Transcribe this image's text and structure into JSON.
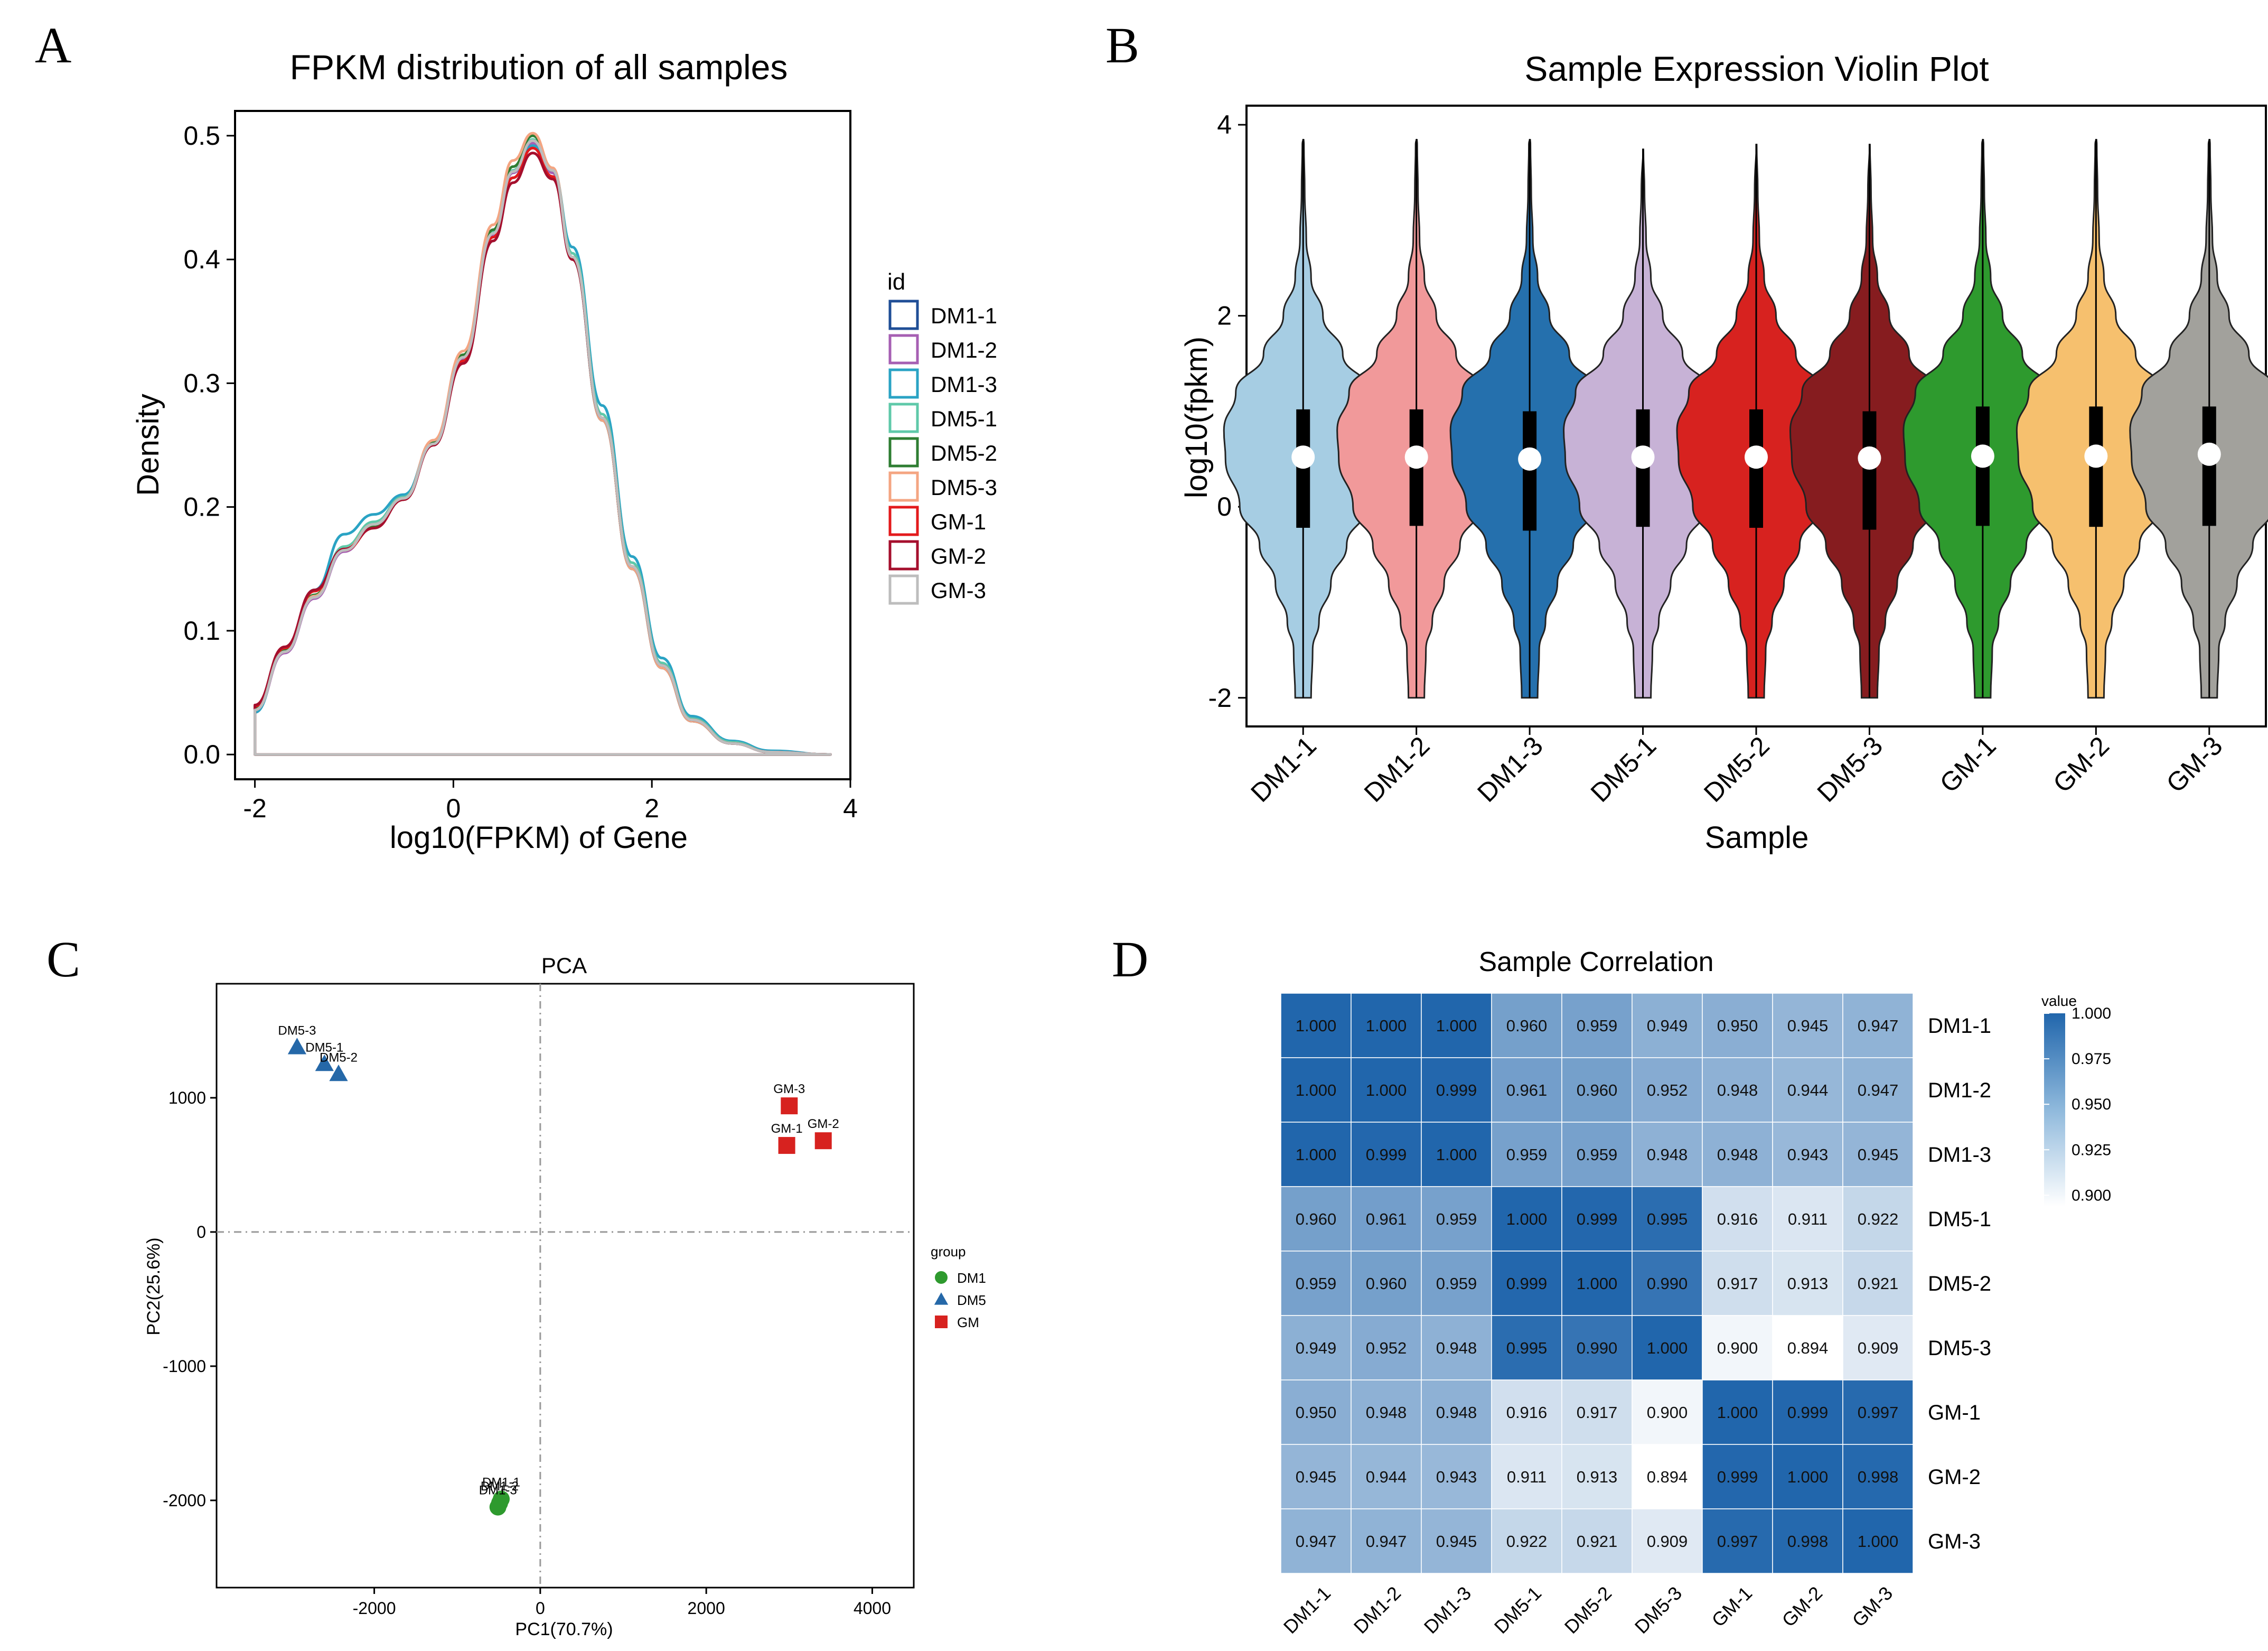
{
  "panels": {
    "A": "A",
    "B": "B",
    "C": "C",
    "D": "D"
  },
  "colors": {
    "DM1-1": "#1f4e96",
    "DM1-2": "#a65fb3",
    "DM1-3": "#2aa3c4",
    "DM5-1": "#5fc9a9",
    "DM5-2": "#2e7d32",
    "DM5-3": "#f4a582",
    "GM-1": "#e31a1c",
    "GM-2": "#a50f2d",
    "GM-3": "#bdbdbd",
    "violin": [
      "#a6cde3",
      "#f1999a",
      "#2570ad",
      "#c7b2d6",
      "#d7221f",
      "#861c1f",
      "#2e9a2e",
      "#f6c06e",
      "#a2a19c"
    ],
    "pca_DM1": "#2e9a2e",
    "pca_DM5": "#2568a8",
    "pca_GM": "#d7221f",
    "heat_low": "#ffffff",
    "heat_high": "#2166ac"
  },
  "chart_data": [
    {
      "id": "A",
      "type": "line",
      "title": "FPKM distribution of all samples",
      "xlabel": "log10(FPKM) of Gene",
      "ylabel": "Density",
      "xlim": [
        -2.2,
        4.0
      ],
      "ylim": [
        -0.02,
        0.52
      ],
      "xticks": [
        -2,
        0,
        2,
        4
      ],
      "yticks": [
        0.0,
        0.1,
        0.2,
        0.3,
        0.4,
        0.5
      ],
      "xtick_labels": [
        "-2",
        "0",
        "2",
        "4"
      ],
      "ytick_labels": [
        "0.0",
        "0.1",
        "0.2",
        "0.3",
        "0.4",
        "0.5"
      ],
      "legend_title": "id",
      "x": [
        -2.0,
        -1.7,
        -1.4,
        -1.1,
        -0.8,
        -0.5,
        -0.2,
        0.1,
        0.4,
        0.6,
        0.8,
        1.0,
        1.2,
        1.5,
        1.8,
        2.1,
        2.4,
        2.8,
        3.2,
        3.8
      ],
      "series": [
        {
          "name": "DM1-1",
          "values": [
            0.036,
            0.083,
            0.127,
            0.165,
            0.187,
            0.207,
            0.25,
            0.32,
            0.42,
            0.47,
            0.495,
            0.47,
            0.4,
            0.27,
            0.15,
            0.07,
            0.027,
            0.009,
            0.002,
            0.0
          ]
        },
        {
          "name": "DM1-2",
          "values": [
            0.035,
            0.082,
            0.126,
            0.164,
            0.186,
            0.206,
            0.25,
            0.32,
            0.42,
            0.47,
            0.494,
            0.47,
            0.4,
            0.27,
            0.15,
            0.07,
            0.027,
            0.009,
            0.002,
            0.0
          ]
        },
        {
          "name": "DM1-3",
          "values": [
            0.034,
            0.086,
            0.133,
            0.178,
            0.194,
            0.21,
            0.252,
            0.318,
            0.415,
            0.466,
            0.492,
            0.472,
            0.41,
            0.282,
            0.16,
            0.078,
            0.031,
            0.011,
            0.003,
            0.0
          ]
        },
        {
          "name": "DM5-1",
          "values": [
            0.036,
            0.083,
            0.128,
            0.168,
            0.188,
            0.208,
            0.252,
            0.322,
            0.422,
            0.472,
            0.497,
            0.473,
            0.405,
            0.275,
            0.155,
            0.074,
            0.029,
            0.01,
            0.002,
            0.0
          ]
        },
        {
          "name": "DM5-2",
          "values": [
            0.037,
            0.084,
            0.129,
            0.166,
            0.185,
            0.206,
            0.252,
            0.323,
            0.424,
            0.475,
            0.5,
            0.472,
            0.4,
            0.27,
            0.15,
            0.07,
            0.027,
            0.009,
            0.002,
            0.0
          ]
        },
        {
          "name": "DM5-3",
          "values": [
            0.036,
            0.083,
            0.128,
            0.166,
            0.186,
            0.207,
            0.254,
            0.326,
            0.428,
            0.48,
            0.502,
            0.474,
            0.402,
            0.27,
            0.15,
            0.07,
            0.027,
            0.009,
            0.002,
            0.0
          ]
        },
        {
          "name": "GM-1",
          "values": [
            0.039,
            0.086,
            0.132,
            0.165,
            0.183,
            0.206,
            0.25,
            0.318,
            0.418,
            0.466,
            0.49,
            0.467,
            0.4,
            0.272,
            0.152,
            0.072,
            0.028,
            0.009,
            0.002,
            0.0
          ]
        },
        {
          "name": "GM-2",
          "values": [
            0.04,
            0.087,
            0.133,
            0.166,
            0.183,
            0.206,
            0.25,
            0.316,
            0.415,
            0.462,
            0.486,
            0.465,
            0.4,
            0.272,
            0.152,
            0.072,
            0.028,
            0.009,
            0.002,
            0.0
          ]
        },
        {
          "name": "GM-3",
          "values": [
            0.036,
            0.083,
            0.127,
            0.165,
            0.186,
            0.207,
            0.251,
            0.321,
            0.421,
            0.471,
            0.496,
            0.472,
            0.402,
            0.272,
            0.152,
            0.072,
            0.028,
            0.009,
            0.002,
            0.0
          ]
        }
      ]
    },
    {
      "id": "B",
      "type": "violin",
      "title": "Sample Expression Violin Plot",
      "xlabel": "Sample",
      "ylabel": "log10(fpkm)",
      "ylim": [
        -2.3,
        4.2
      ],
      "yticks": [
        -2,
        0,
        2,
        4
      ],
      "ytick_labels": [
        "-2",
        "0",
        "2",
        "4"
      ],
      "categories": [
        "DM1-1",
        "DM1-2",
        "DM1-3",
        "DM5-1",
        "DM5-2",
        "DM5-3",
        "GM-1",
        "GM-2",
        "GM-3"
      ],
      "min": [
        -2,
        -2,
        -2,
        -2,
        -2,
        -2,
        -2,
        -2,
        -2
      ],
      "max": [
        3.85,
        3.85,
        3.85,
        3.75,
        3.8,
        3.8,
        3.85,
        3.85,
        3.85
      ],
      "q1": [
        -0.22,
        -0.2,
        -0.25,
        -0.21,
        -0.22,
        -0.24,
        -0.2,
        -0.21,
        -0.2
      ],
      "median": [
        0.52,
        0.52,
        0.5,
        0.52,
        0.52,
        0.51,
        0.53,
        0.53,
        0.55
      ],
      "q3": [
        1.02,
        1.02,
        1.0,
        1.02,
        1.02,
        1.0,
        1.05,
        1.05,
        1.05
      ]
    },
    {
      "id": "C",
      "type": "scatter",
      "title": "PCA",
      "xlabel": "PC1(70.7%)",
      "ylabel": "PC2(25.6%)",
      "xlim": [
        -3900,
        4500
      ],
      "ylim": [
        -2650,
        1850
      ],
      "xticks": [
        -2000,
        0,
        2000,
        4000
      ],
      "yticks": [
        -2000,
        -1000,
        0,
        1000
      ],
      "xtick_labels": [
        "-2000",
        "0",
        "2000",
        "4000"
      ],
      "ytick_labels": [
        "-2000",
        "-1000",
        "0",
        "1000"
      ],
      "legend_title": "group",
      "groups": [
        "DM1",
        "DM5",
        "GM"
      ],
      "points": [
        {
          "label": "DM1-1",
          "group": "DM1",
          "x": -470,
          "y": -1990
        },
        {
          "label": "DM1-2",
          "group": "DM1",
          "x": -490,
          "y": -2020
        },
        {
          "label": "DM1-3",
          "group": "DM1",
          "x": -510,
          "y": -2050
        },
        {
          "label": "DM5-1",
          "group": "DM5",
          "x": -2600,
          "y": 1250
        },
        {
          "label": "DM5-2",
          "group": "DM5",
          "x": -2430,
          "y": 1175
        },
        {
          "label": "DM5-3",
          "group": "DM5",
          "x": -2930,
          "y": 1375
        },
        {
          "label": "GM-1",
          "group": "GM",
          "x": 2970,
          "y": 645
        },
        {
          "label": "GM-2",
          "group": "GM",
          "x": 3410,
          "y": 680
        },
        {
          "label": "GM-3",
          "group": "GM",
          "x": 3000,
          "y": 940
        }
      ]
    },
    {
      "id": "D",
      "type": "heatmap",
      "title": "Sample Correlation",
      "rows": [
        "DM1-1",
        "DM1-2",
        "DM1-3",
        "DM5-1",
        "DM5-2",
        "DM5-3",
        "GM-1",
        "GM-2",
        "GM-3"
      ],
      "cols": [
        "DM1-1",
        "DM1-2",
        "DM1-3",
        "DM5-1",
        "DM5-2",
        "DM5-3",
        "GM-1",
        "GM-2",
        "GM-3"
      ],
      "values": [
        [
          "1.000",
          "1.000",
          "1.000",
          "0.960",
          "0.959",
          "0.949",
          "0.950",
          "0.945",
          "0.947"
        ],
        [
          "1.000",
          "1.000",
          "0.999",
          "0.961",
          "0.960",
          "0.952",
          "0.948",
          "0.944",
          "0.947"
        ],
        [
          "1.000",
          "0.999",
          "1.000",
          "0.959",
          "0.959",
          "0.948",
          "0.948",
          "0.943",
          "0.945"
        ],
        [
          "0.960",
          "0.961",
          "0.959",
          "1.000",
          "0.999",
          "0.995",
          "0.916",
          "0.911",
          "0.922"
        ],
        [
          "0.959",
          "0.960",
          "0.959",
          "0.999",
          "1.000",
          "0.990",
          "0.917",
          "0.913",
          "0.921"
        ],
        [
          "0.949",
          "0.952",
          "0.948",
          "0.995",
          "0.990",
          "1.000",
          "0.900",
          "0.894",
          "0.909"
        ],
        [
          "0.950",
          "0.948",
          "0.948",
          "0.916",
          "0.917",
          "0.900",
          "1.000",
          "0.999",
          "0.997"
        ],
        [
          "0.945",
          "0.944",
          "0.943",
          "0.911",
          "0.913",
          "0.894",
          "0.999",
          "1.000",
          "0.998"
        ],
        [
          "0.947",
          "0.947",
          "0.945",
          "0.922",
          "0.921",
          "0.909",
          "0.997",
          "0.998",
          "1.000"
        ]
      ],
      "legend_title": "value",
      "scale_ticks": [
        "1.000",
        "0.975",
        "0.950",
        "0.925",
        "0.900"
      ],
      "scale_range": [
        0.894,
        1.0
      ]
    }
  ]
}
